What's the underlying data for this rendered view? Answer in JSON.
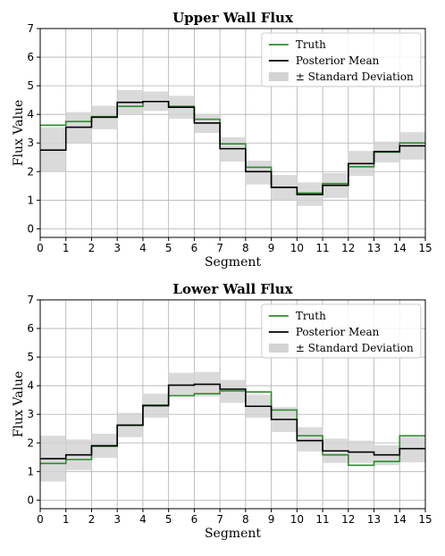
{
  "chart_data": [
    {
      "type": "line",
      "title": "Upper Wall Flux",
      "xlabel": "Segment",
      "ylabel": "Flux Value",
      "xlim": [
        0,
        15
      ],
      "ylim": [
        -0.3,
        7
      ],
      "xticks": [
        0,
        1,
        2,
        3,
        4,
        5,
        6,
        7,
        8,
        9,
        10,
        11,
        12,
        13,
        14,
        15
      ],
      "yticks": [
        0,
        1,
        2,
        3,
        4,
        5,
        6,
        7
      ],
      "grid": true,
      "legend_position": "top-right",
      "step": "post",
      "segments": [
        0,
        1,
        2,
        3,
        4,
        5,
        6,
        7,
        8,
        9,
        10,
        11,
        12,
        13,
        14
      ],
      "series": [
        {
          "name": "Truth",
          "color": "#2e8b2e",
          "values": [
            3.62,
            3.75,
            3.92,
            4.28,
            4.45,
            4.28,
            3.83,
            2.97,
            2.15,
            1.45,
            1.25,
            1.58,
            2.17,
            2.68,
            3.0
          ]
        },
        {
          "name": "Posterior Mean",
          "color": "#000000",
          "values": [
            2.75,
            3.55,
            3.9,
            4.42,
            4.45,
            4.25,
            3.7,
            2.8,
            2.0,
            1.45,
            1.2,
            1.52,
            2.28,
            2.7,
            2.9
          ]
        }
      ],
      "band": {
        "name": "± Standard Deviation",
        "color": "#d3d3d3",
        "lower": [
          1.98,
          3.0,
          3.48,
          4.0,
          4.12,
          3.85,
          3.35,
          2.35,
          1.55,
          1.0,
          0.8,
          1.08,
          1.85,
          2.32,
          2.42
        ],
        "upper": [
          3.55,
          4.08,
          4.3,
          4.85,
          4.8,
          4.65,
          4.02,
          3.2,
          2.38,
          1.88,
          1.62,
          1.95,
          2.72,
          3.05,
          3.38
        ]
      }
    },
    {
      "type": "line",
      "title": "Lower Wall Flux",
      "xlabel": "Segment",
      "ylabel": "Flux Value",
      "xlim": [
        0,
        15
      ],
      "ylim": [
        -0.3,
        7
      ],
      "xticks": [
        0,
        1,
        2,
        3,
        4,
        5,
        6,
        7,
        8,
        9,
        10,
        11,
        12,
        13,
        14,
        15
      ],
      "yticks": [
        0,
        1,
        2,
        3,
        4,
        5,
        6,
        7
      ],
      "grid": true,
      "legend_position": "top-right",
      "step": "post",
      "segments": [
        0,
        1,
        2,
        3,
        4,
        5,
        6,
        7,
        8,
        9,
        10,
        11,
        12,
        13,
        14
      ],
      "series": [
        {
          "name": "Truth",
          "color": "#2e8b2e",
          "values": [
            1.28,
            1.42,
            1.88,
            2.62,
            3.32,
            3.65,
            3.72,
            3.82,
            3.78,
            3.15,
            2.25,
            1.58,
            1.22,
            1.35,
            2.25
          ]
        },
        {
          "name": "Posterior Mean",
          "color": "#000000",
          "values": [
            1.45,
            1.58,
            1.9,
            2.62,
            3.3,
            4.02,
            4.05,
            3.88,
            3.28,
            2.82,
            2.08,
            1.72,
            1.68,
            1.58,
            1.8
          ]
        }
      ],
      "band": {
        "name": "± Standard Deviation",
        "color": "#d3d3d3",
        "lower": [
          0.65,
          1.05,
          1.48,
          2.2,
          2.88,
          3.62,
          3.62,
          3.4,
          2.88,
          2.38,
          1.7,
          1.3,
          1.3,
          1.22,
          1.32
        ],
        "upper": [
          2.25,
          2.12,
          2.32,
          3.05,
          3.72,
          4.45,
          4.48,
          4.2,
          3.68,
          3.25,
          2.55,
          2.15,
          2.08,
          1.92,
          2.25
        ]
      }
    }
  ]
}
